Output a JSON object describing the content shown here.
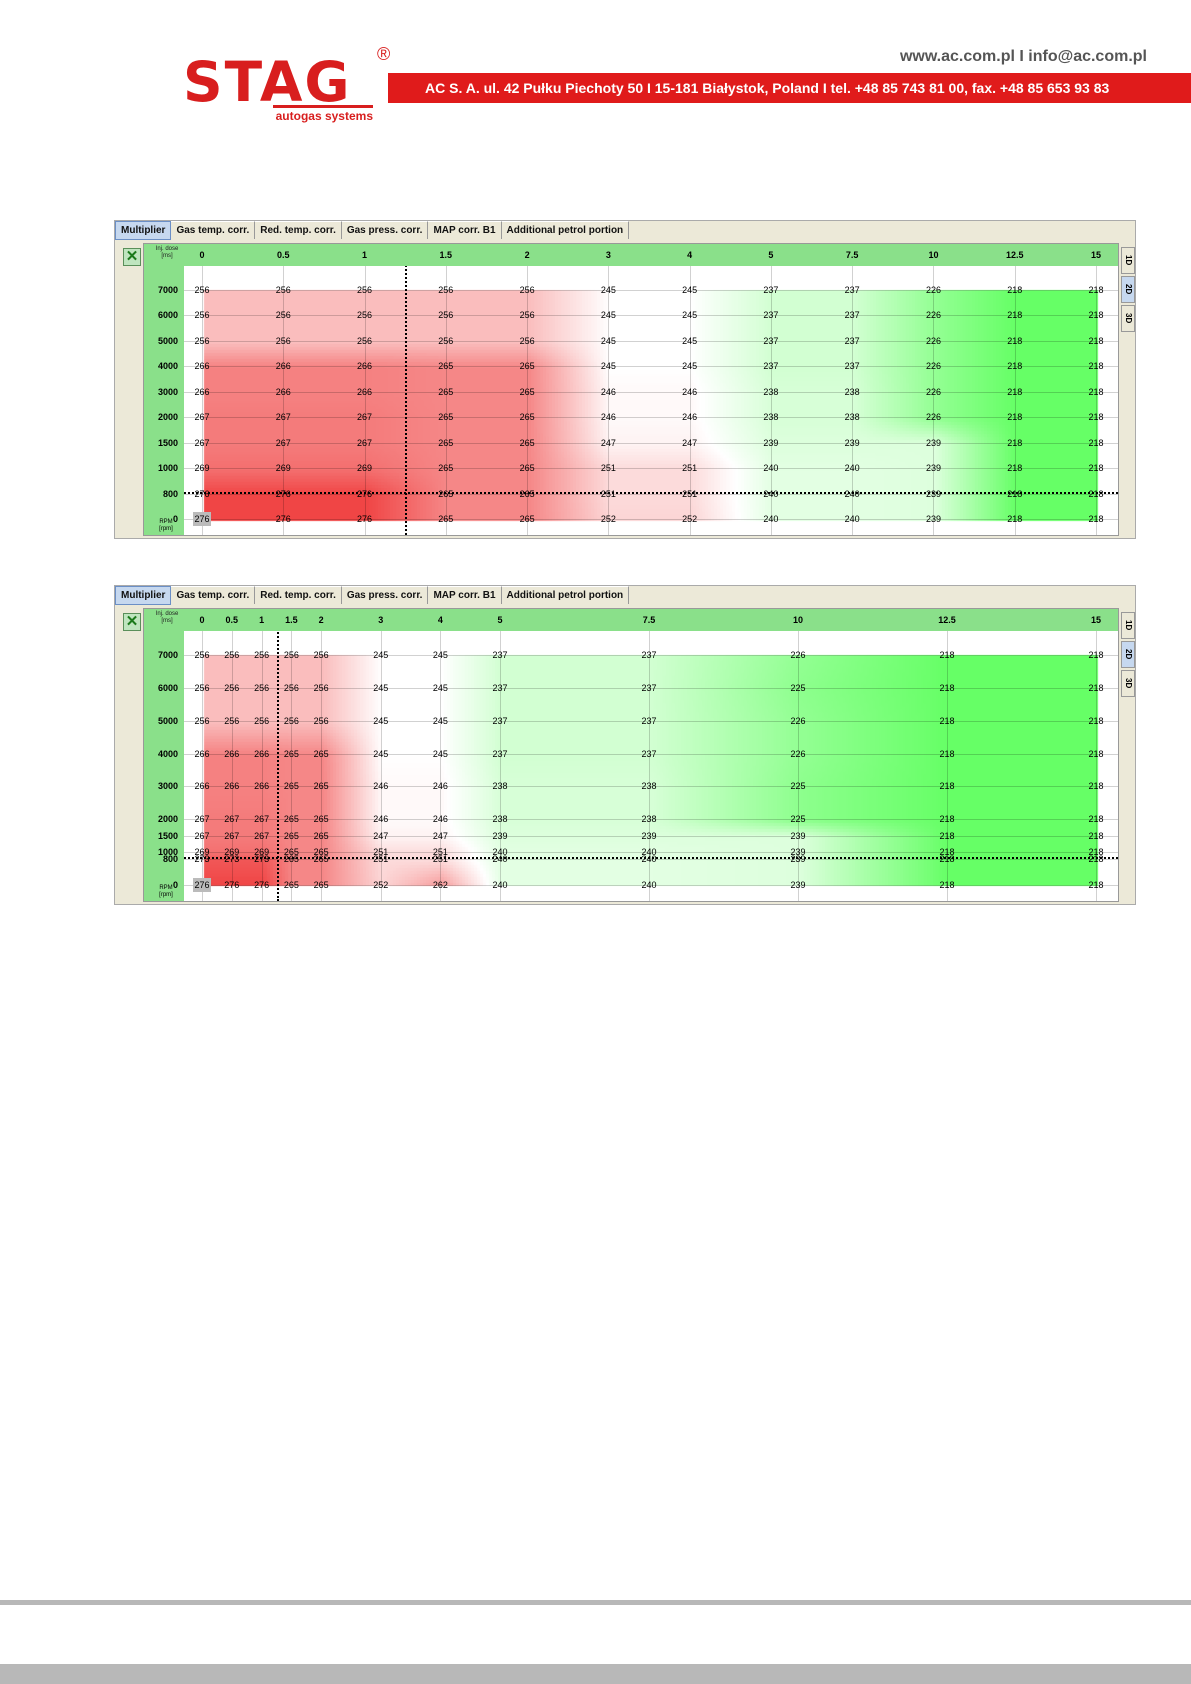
{
  "header": {
    "logo_text": "STAG",
    "logo_tagline": "autogas systems",
    "registered": "®",
    "contact": "www.ac.com.pl I info@ac.com.pl",
    "address": "AC S. A. ul. 42 Pułku Piechoty 50 I 15-181 Białystok, Poland I tel. +48 85 743 81 00, fax. +48 85 653 93 83"
  },
  "tabs": [
    "Multiplier",
    "Gas temp. corr.",
    "Red. temp. corr.",
    "Gas press. corr.",
    "MAP corr. B1",
    "Additional petrol portion"
  ],
  "side_tabs": [
    "1D",
    "2D",
    "3D"
  ],
  "corner_label": "Inj. dose [ms]",
  "rpm_label": "RPM [rpm]",
  "icon": "close-x-icon",
  "colors": {
    "low": "#66ff66",
    "mid": "#ffffff",
    "high": "#f04545",
    "header": "#8ae08a"
  },
  "chart_data": {
    "type": "heatmap",
    "x": [
      "0",
      "0.5",
      "1",
      "1.5",
      "2",
      "3",
      "4",
      "5",
      "7.5",
      "10",
      "12.5",
      "15"
    ],
    "y": [
      "7000",
      "6000",
      "5000",
      "4000",
      "3000",
      "2000",
      "1500",
      "1000",
      "800",
      "0"
    ],
    "values": [
      [
        256,
        256,
        256,
        256,
        256,
        245,
        245,
        237,
        237,
        226,
        218,
        218
      ],
      [
        256,
        256,
        256,
        256,
        256,
        245,
        245,
        237,
        237,
        226,
        218,
        218
      ],
      [
        256,
        256,
        256,
        256,
        256,
        245,
        245,
        237,
        237,
        226,
        218,
        218
      ],
      [
        266,
        266,
        266,
        265,
        265,
        245,
        245,
        237,
        237,
        226,
        218,
        218
      ],
      [
        266,
        266,
        266,
        265,
        265,
        246,
        246,
        238,
        238,
        226,
        218,
        218
      ],
      [
        267,
        267,
        267,
        265,
        265,
        246,
        246,
        238,
        238,
        226,
        218,
        218
      ],
      [
        267,
        267,
        267,
        265,
        265,
        247,
        247,
        239,
        239,
        239,
        218,
        218
      ],
      [
        269,
        269,
        269,
        265,
        265,
        251,
        251,
        240,
        240,
        239,
        218,
        218
      ],
      [
        276,
        276,
        276,
        265,
        265,
        251,
        251,
        240,
        240,
        239,
        218,
        218
      ],
      [
        276,
        276,
        276,
        265,
        265,
        252,
        252,
        240,
        240,
        239,
        218,
        218
      ]
    ],
    "selected_cell": "276",
    "cursor": {
      "x": "1.25",
      "y": "800"
    }
  },
  "chart_data_2": {
    "type": "heatmap",
    "x": [
      "0",
      "0.5",
      "1",
      "1.5",
      "2",
      "3",
      "4",
      "5",
      "7.5",
      "10",
      "12.5",
      "15"
    ],
    "y": [
      "7000",
      "6000",
      "5000",
      "4000",
      "3000",
      "2000",
      "1500",
      "1000",
      "800",
      "0"
    ],
    "values": [
      [
        256,
        256,
        256,
        256,
        256,
        245,
        245,
        237,
        237,
        226,
        218,
        218
      ],
      [
        256,
        256,
        256,
        256,
        256,
        245,
        245,
        237,
        237,
        225,
        218,
        218
      ],
      [
        256,
        256,
        256,
        256,
        256,
        245,
        245,
        237,
        237,
        226,
        218,
        218
      ],
      [
        266,
        266,
        266,
        265,
        265,
        245,
        245,
        237,
        237,
        226,
        218,
        218
      ],
      [
        266,
        266,
        266,
        265,
        265,
        246,
        246,
        238,
        238,
        225,
        218,
        218
      ],
      [
        267,
        267,
        267,
        265,
        265,
        246,
        246,
        238,
        238,
        225,
        218,
        218
      ],
      [
        267,
        267,
        267,
        265,
        265,
        247,
        247,
        239,
        239,
        239,
        218,
        218
      ],
      [
        269,
        269,
        269,
        265,
        265,
        251,
        251,
        240,
        240,
        239,
        218,
        218
      ],
      [
        273,
        273,
        273,
        265,
        265,
        251,
        251,
        240,
        240,
        239,
        218,
        218
      ],
      [
        276,
        276,
        276,
        265,
        265,
        252,
        262,
        240,
        240,
        239,
        218,
        218
      ]
    ],
    "selected_cell": "276",
    "cursor": {
      "x": "1.25",
      "y": "800"
    }
  }
}
